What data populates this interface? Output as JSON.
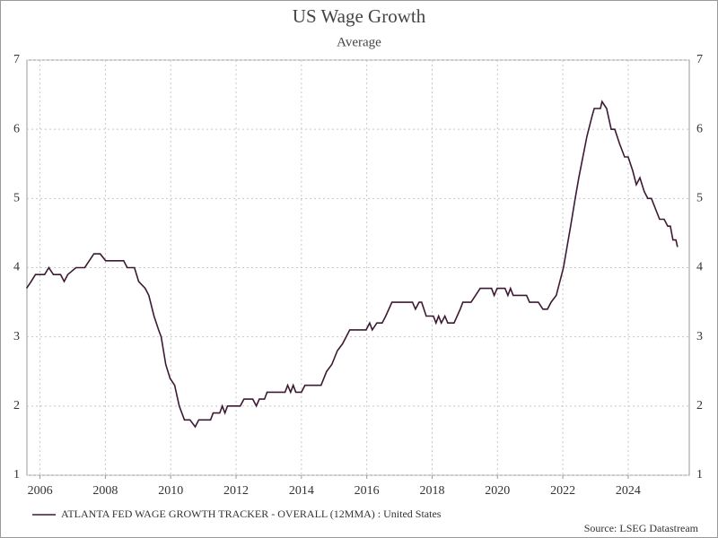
{
  "chart_data": {
    "type": "line",
    "title": "US Wage Growth",
    "subtitle": "Average",
    "source": "Source: LSEG Datastream",
    "grid": true,
    "legend": "bottom-left",
    "xlim": [
      2005.6,
      2025.87
    ],
    "xticks": [
      2006,
      2008,
      2010,
      2012,
      2014,
      2016,
      2018,
      2020,
      2022,
      2024
    ],
    "ylim": [
      1,
      7
    ],
    "yticks": [
      1,
      2,
      3,
      4,
      5,
      6,
      7
    ],
    "x": [
      2005.59,
      2005.73,
      2005.86,
      2006.14,
      2006.27,
      2006.41,
      2006.63,
      2006.74,
      2006.85,
      2007.1,
      2007.37,
      2007.65,
      2007.84,
      2008.01,
      2008.56,
      2008.67,
      2008.89,
      2009.02,
      2009.22,
      2009.33,
      2009.49,
      2009.63,
      2009.71,
      2009.85,
      2009.98,
      2010.12,
      2010.26,
      2010.42,
      2010.59,
      2010.75,
      2010.86,
      2011.22,
      2011.3,
      2011.5,
      2011.58,
      2011.66,
      2011.74,
      2012.13,
      2012.24,
      2012.51,
      2012.62,
      2012.71,
      2012.87,
      2012.95,
      2013.5,
      2013.58,
      2013.67,
      2013.75,
      2013.83,
      2014.0,
      2014.11,
      2014.6,
      2014.77,
      2014.93,
      2015.1,
      2015.26,
      2015.48,
      2015.98,
      2016.09,
      2016.17,
      2016.31,
      2016.47,
      2016.58,
      2016.77,
      2017.4,
      2017.49,
      2017.6,
      2017.68,
      2017.82,
      2018.04,
      2018.12,
      2018.2,
      2018.28,
      2018.39,
      2018.48,
      2018.67,
      2018.86,
      2018.94,
      2019.19,
      2019.33,
      2019.47,
      2019.82,
      2019.9,
      2019.99,
      2020.23,
      2020.32,
      2020.4,
      2020.48,
      2020.89,
      2020.98,
      2021.25,
      2021.39,
      2021.53,
      2021.64,
      2021.8,
      2021.91,
      2022.02,
      2022.24,
      2022.38,
      2022.49,
      2022.74,
      2022.9,
      2022.96,
      2023.15,
      2023.2,
      2023.34,
      2023.48,
      2023.59,
      2023.73,
      2023.89,
      2024.0,
      2024.14,
      2024.25,
      2024.36,
      2024.49,
      2024.6,
      2024.71,
      2024.96,
      2025.1,
      2025.21,
      2025.29,
      2025.37,
      2025.46,
      2025.51
    ],
    "series": [
      {
        "name": "ATLANTA FED WAGE GROWTH TRACKER - OVERALL (12MMA) : United States",
        "color": "#3d1a33",
        "values": [
          3.7,
          3.8,
          3.9,
          3.9,
          4.0,
          3.9,
          3.9,
          3.8,
          3.9,
          4.0,
          4.0,
          4.2,
          4.2,
          4.1,
          4.1,
          4.0,
          4.0,
          3.8,
          3.7,
          3.6,
          3.3,
          3.1,
          3.0,
          2.6,
          2.4,
          2.3,
          2.0,
          1.8,
          1.8,
          1.7,
          1.8,
          1.8,
          1.9,
          1.9,
          2.0,
          1.9,
          2.0,
          2.0,
          2.1,
          2.1,
          2.0,
          2.1,
          2.1,
          2.2,
          2.2,
          2.3,
          2.2,
          2.3,
          2.2,
          2.2,
          2.3,
          2.3,
          2.5,
          2.6,
          2.8,
          2.9,
          3.1,
          3.1,
          3.2,
          3.1,
          3.2,
          3.2,
          3.3,
          3.5,
          3.5,
          3.4,
          3.5,
          3.5,
          3.3,
          3.3,
          3.2,
          3.3,
          3.2,
          3.3,
          3.2,
          3.2,
          3.4,
          3.5,
          3.5,
          3.6,
          3.7,
          3.7,
          3.6,
          3.7,
          3.7,
          3.6,
          3.7,
          3.6,
          3.6,
          3.5,
          3.5,
          3.4,
          3.4,
          3.5,
          3.6,
          3.8,
          4.0,
          4.6,
          5.0,
          5.3,
          5.9,
          6.2,
          6.3,
          6.3,
          6.4,
          6.3,
          6.0,
          6.0,
          5.8,
          5.6,
          5.6,
          5.4,
          5.2,
          5.3,
          5.1,
          5.0,
          5.0,
          4.7,
          4.7,
          4.6,
          4.6,
          4.4,
          4.4,
          4.3
        ]
      }
    ]
  }
}
